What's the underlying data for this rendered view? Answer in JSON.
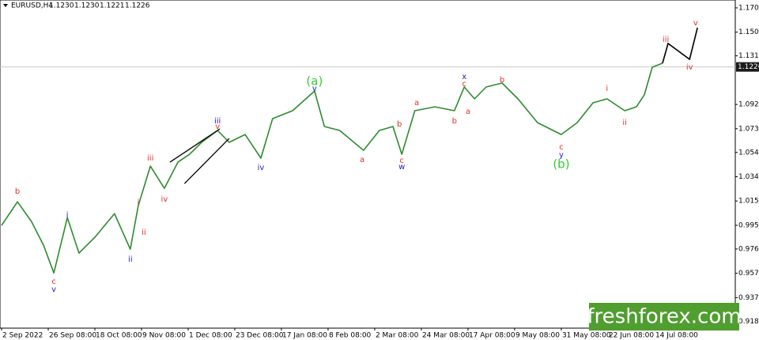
{
  "chart_data": {
    "type": "line",
    "title": "EURUSD,H4",
    "quote": [
      "1.1230",
      "1.1230",
      "1.1221",
      "1.1226"
    ],
    "last_price": 1.1226,
    "watermark": "freshforex.com",
    "xlim": [
      -0.034,
      15.73
    ],
    "xticks": [
      {
        "value": 0,
        "label": "2 Sep 2022"
      },
      {
        "value": 1,
        "label": "26 Sep 08:00"
      },
      {
        "value": 2,
        "label": "18 Oct 08:00"
      },
      {
        "value": 3,
        "label": "9 Nov 08:00"
      },
      {
        "value": 4,
        "label": "1 Dec 08:00"
      },
      {
        "value": 5,
        "label": "23 Dec 08:00"
      },
      {
        "value": 6,
        "label": "17 Jan 08:00"
      },
      {
        "value": 7,
        "label": "8 Feb 08:00"
      },
      {
        "value": 8,
        "label": "2 Mar 08:00"
      },
      {
        "value": 9,
        "label": "24 Mar 08:00"
      },
      {
        "value": 10,
        "label": "17 Apr 08:00"
      },
      {
        "value": 11,
        "label": "9 May 08:00"
      },
      {
        "value": 12,
        "label": "31 May 08:00"
      },
      {
        "value": 13,
        "label": "22 Jun 08:00"
      },
      {
        "value": 14,
        "label": "14 Jul 08:00"
      }
    ],
    "ylim": [
      0.913,
      1.1763
    ],
    "yticks": [
      {
        "value": 1.17,
        "label": "1.1700"
      },
      1.1505,
      1.1315,
      1.0925,
      {
        "value": 1.073,
        "label": "1.0730"
      },
      {
        "value": 1.054,
        "label": "1.0540"
      },
      1.0345,
      {
        "value": 1.015,
        "label": "1.0150"
      },
      0.9955,
      0.9765,
      {
        "value": 0.957,
        "label": "0.9570"
      },
      0.9375,
      0.9185
    ],
    "x": [
      0,
      0.34,
      0.64,
      0.9,
      1.12,
      1.41,
      1.66,
      2.0,
      2.42,
      2.76,
      2.93,
      3.19,
      3.49,
      3.78,
      4.03,
      4.29,
      4.63,
      4.88,
      5.22,
      5.56,
      5.81,
      6.24,
      6.71,
      6.92,
      7.25,
      7.76,
      8.1,
      8.39,
      8.58,
      8.86,
      9.29,
      9.71,
      9.92,
      10.14,
      10.39,
      10.73,
      11.07,
      11.49,
      12.0,
      12.34,
      12.68,
      12.98,
      13.36,
      13.61,
      13.78,
      13.95,
      14.17
    ],
    "series": [
      {
        "name": "EURUSD",
        "color": "#2e8b2e",
        "values": [
          0.9954,
          1.0144,
          0.9986,
          0.9795,
          0.9573,
          1.0017,
          0.9732,
          0.9859,
          1.0049,
          0.9763,
          1.0113,
          1.043,
          1.0252,
          1.0462,
          1.0525,
          1.0621,
          1.0716,
          1.0621,
          1.0684,
          1.0494,
          1.0811,
          1.0875,
          1.1033,
          1.0748,
          1.0716,
          1.0557,
          1.0716,
          1.0748,
          1.0525,
          1.0875,
          1.0906,
          1.0875,
          1.1065,
          1.097,
          1.1065,
          1.1097,
          1.097,
          1.0779,
          1.0684,
          1.0779,
          1.0938,
          1.097,
          1.0875,
          1.0906,
          1.1002,
          1.1224,
          1.1256
        ]
      }
    ],
    "projection": {
      "color": "#000000",
      "x": [
        14.17,
        14.29,
        14.75,
        14.92
      ],
      "y": [
        1.1256,
        1.1414,
        1.1287,
        1.1541
      ]
    },
    "trendlines": [
      {
        "x": [
          3.61,
          4.68
        ],
        "y": [
          1.0462,
          1.0729
        ]
      },
      {
        "x": [
          3.92,
          4.88
        ],
        "y": [
          1.029,
          1.0652
        ]
      }
    ],
    "wave_labels": [
      {
        "text": "b",
        "x": 0.34,
        "y": 1.0227,
        "color": "#e03030"
      },
      {
        "text": "c",
        "x": 1.12,
        "y": 0.9503,
        "color": "#e03030"
      },
      {
        "text": "v",
        "x": 1.12,
        "y": 0.944,
        "color": "#2020c0"
      },
      {
        "text": "i",
        "x": 1.41,
        "y": 1.0037,
        "color": "#2020c0"
      },
      {
        "text": "ii",
        "x": 2.76,
        "y": 0.9681,
        "color": "#2020c0"
      },
      {
        "text": "i",
        "x": 2.93,
        "y": 1.0138,
        "color": "#e03030"
      },
      {
        "text": "ii",
        "x": 3.05,
        "y": 0.9897,
        "color": "#e03030"
      },
      {
        "text": "iii",
        "x": 3.19,
        "y": 1.0494,
        "color": "#e03030"
      },
      {
        "text": "iv",
        "x": 3.49,
        "y": 1.0163,
        "color": "#e03030"
      },
      {
        "text": "iii",
        "x": 4.63,
        "y": 1.0792,
        "color": "#2020c0"
      },
      {
        "text": "v",
        "x": 4.63,
        "y": 1.0748,
        "color": "#e03030"
      },
      {
        "text": "iv",
        "x": 5.56,
        "y": 1.0417,
        "color": "#2020c0"
      },
      {
        "text": "(a)",
        "x": 6.71,
        "y": 1.111,
        "color": "#33cc33"
      },
      {
        "text": "v",
        "x": 6.71,
        "y": 1.1052,
        "color": "#2020c0"
      },
      {
        "text": "a",
        "x": 7.73,
        "y": 1.0481,
        "color": "#e03030"
      },
      {
        "text": "b",
        "x": 8.53,
        "y": 1.0767,
        "color": "#e03030"
      },
      {
        "text": "c",
        "x": 8.58,
        "y": 1.0475,
        "color": "#e03030"
      },
      {
        "text": "w",
        "x": 8.58,
        "y": 1.0424,
        "color": "#2020c0"
      },
      {
        "text": "a",
        "x": 8.9,
        "y": 1.0938,
        "color": "#e03030"
      },
      {
        "text": "b",
        "x": 9.71,
        "y": 1.0792,
        "color": "#e03030"
      },
      {
        "text": "x",
        "x": 9.92,
        "y": 1.1148,
        "color": "#2020c0"
      },
      {
        "text": "c",
        "x": 9.92,
        "y": 1.109,
        "color": "#e03030"
      },
      {
        "text": "a",
        "x": 10.0,
        "y": 1.0868,
        "color": "#e03030"
      },
      {
        "text": "b",
        "x": 10.73,
        "y": 1.1122,
        "color": "#e03030"
      },
      {
        "text": "c",
        "x": 12.0,
        "y": 1.0583,
        "color": "#e03030"
      },
      {
        "text": "y",
        "x": 12.0,
        "y": 1.0519,
        "color": "#2020c0"
      },
      {
        "text": "(b)",
        "x": 12.0,
        "y": 1.0443,
        "color": "#33cc33"
      },
      {
        "text": "i",
        "x": 12.98,
        "y": 1.1052,
        "color": "#e03030"
      },
      {
        "text": "ii",
        "x": 13.36,
        "y": 1.0779,
        "color": "#e03030"
      },
      {
        "text": "iii",
        "x": 14.24,
        "y": 1.1446,
        "color": "#e03030"
      },
      {
        "text": "iv",
        "x": 14.75,
        "y": 1.1224,
        "color": "#e03030"
      },
      {
        "text": "v",
        "x": 14.88,
        "y": 1.1579,
        "color": "#e03030"
      }
    ]
  }
}
